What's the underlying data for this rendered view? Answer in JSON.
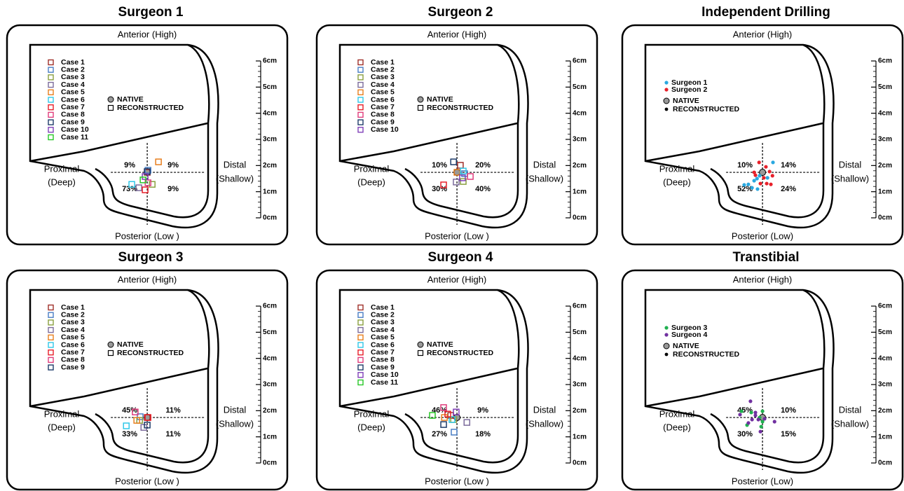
{
  "scale_ticks": [
    {
      "value": 0,
      "label": "0cm"
    },
    {
      "value": 1,
      "label": "1cm"
    },
    {
      "value": 2,
      "label": "2cm"
    },
    {
      "value": 3,
      "label": "3cm"
    },
    {
      "value": 4,
      "label": "4cm"
    },
    {
      "value": 5,
      "label": "5cm"
    },
    {
      "value": 6,
      "label": "6cm"
    }
  ],
  "panels": [
    {
      "title": "Surgeon 1",
      "anterior": "Anterior (High)",
      "posterior": "Posterior (Low )",
      "proximal": "Proximal",
      "proximal_sub": "(Deep)",
      "distal": "Distal",
      "distal_sub": "(Shallow)",
      "marker": "square",
      "series": [
        {
          "name": "Case 1",
          "color": "#a0302a",
          "x": [
            5.36
          ],
          "y": [
            1.74
          ]
        },
        {
          "name": "Case 2",
          "color": "#4a7ec4",
          "x": [
            5.39
          ],
          "y": [
            1.82
          ]
        },
        {
          "name": "Case 3",
          "color": "#8aa040",
          "x": [
            5.55
          ],
          "y": [
            1.28
          ]
        },
        {
          "name": "Case 4",
          "color": "#7c6c9c",
          "x": [
            5.04
          ],
          "y": [
            1.15
          ]
        },
        {
          "name": "Case 5",
          "color": "#e87f1f",
          "x": [
            5.79
          ],
          "y": [
            2.14
          ]
        },
        {
          "name": "Case 6",
          "color": "#30c8e8",
          "x": [
            4.77
          ],
          "y": [
            1.28
          ]
        },
        {
          "name": "Case 7",
          "color": "#e8202a",
          "x": [
            5.28
          ],
          "y": [
            1.07
          ]
        },
        {
          "name": "Case 8",
          "color": "#e03c7c",
          "x": [
            5.39
          ],
          "y": [
            1.34
          ]
        },
        {
          "name": "Case 9",
          "color": "#1e3c6a",
          "x": [
            5.36
          ],
          "y": [
            1.77
          ]
        },
        {
          "name": "Case 10",
          "color": "#8040b8",
          "x": [
            5.28
          ],
          "y": [
            1.58
          ]
        },
        {
          "name": "Case 11",
          "color": "#28c828",
          "x": [
            5.2
          ],
          "y": [
            1.45
          ]
        }
      ],
      "native": {
        "label": "NATIVE",
        "x": 5.36,
        "y": 1.74
      },
      "reconstructed_label": "RECONSTRUCTED",
      "quadrants": [
        "9%",
        "9%",
        "73%",
        "9%"
      ]
    },
    {
      "title": "Surgeon 2",
      "anterior": "Anterior (High)",
      "posterior": "Posterior (Low )",
      "proximal": "Proximal",
      "proximal_sub": "(Deep)",
      "distal": "Distal",
      "distal_sub": "(Shallow)",
      "marker": "square",
      "series": [
        {
          "name": "Case 1",
          "color": "#a0302a",
          "x": [
            5.49
          ],
          "y": [
            2.01
          ]
        },
        {
          "name": "Case 2",
          "color": "#4a7ec4",
          "x": [
            5.65
          ],
          "y": [
            1.69
          ]
        },
        {
          "name": "Case 3",
          "color": "#8aa040",
          "x": [
            5.6
          ],
          "y": [
            1.39
          ]
        },
        {
          "name": "Case 4",
          "color": "#7c6c9c",
          "x": [
            5.33
          ],
          "y": [
            1.37
          ]
        },
        {
          "name": "Case 5",
          "color": "#e87f1f",
          "x": [
            5.36
          ],
          "y": [
            1.74
          ]
        },
        {
          "name": "Case 6",
          "color": "#30c8e8",
          "x": [
            5.6
          ],
          "y": [
            1.79
          ]
        },
        {
          "name": "Case 7",
          "color": "#e8202a",
          "x": [
            4.85
          ],
          "y": [
            1.26
          ]
        },
        {
          "name": "Case 8",
          "color": "#e03c7c",
          "x": [
            5.87
          ],
          "y": [
            1.58
          ]
        },
        {
          "name": "Case 9",
          "color": "#1e3c6a",
          "x": [
            5.23
          ],
          "y": [
            2.14
          ]
        },
        {
          "name": "Case 10",
          "color": "#8040b8",
          "x": [
            5.57
          ],
          "y": [
            1.53
          ]
        }
      ],
      "native": {
        "label": "NATIVE",
        "x": 5.36,
        "y": 1.74
      },
      "reconstructed_label": "RECONSTRUCTED",
      "quadrants": [
        "10%",
        "20%",
        "30%",
        "40%"
      ]
    },
    {
      "title": "Independent Drilling",
      "anterior": "Anterior (High)",
      "posterior": "Posterior (Low)",
      "proximal": "Proximal",
      "proximal_sub": "(Deep)",
      "distal": "Distal",
      "distal_sub": "(Shallow)",
      "marker": "dot",
      "series": [
        {
          "name": "Surgeon 1",
          "color": "#29a8e0",
          "x": [
            5.04,
            5.15,
            5.25,
            4.82,
            4.96,
            5.17,
            5.76,
            5.55,
            4.66
          ],
          "y": [
            1.42,
            1.5,
            1.61,
            1.28,
            1.15,
            1.1,
            2.12,
            1.53,
            1.26
          ]
        },
        {
          "name": "Surgeon 2",
          "color": "#e8202a",
          "x": [
            5.23,
            5.49,
            5.63,
            5.74,
            5.41,
            5.52,
            5.28,
            5.04,
            5.68,
            5.09
          ],
          "y": [
            2.12,
            1.95,
            1.77,
            1.61,
            1.53,
            1.31,
            1.31,
            1.74,
            1.28,
            1.63
          ]
        }
      ],
      "native": {
        "label": "NATIVE",
        "x": 5.36,
        "y": 1.74
      },
      "reconstructed_label": "RECONSTRUCTED",
      "quadrants": [
        "10%",
        "14%",
        "52%",
        "24%"
      ]
    },
    {
      "title": "Surgeon 3",
      "anterior": "Anterior (High)",
      "posterior": "Posterior (Low )",
      "proximal": "Proximal",
      "proximal_sub": "(Deep)",
      "distal": "Distal",
      "distal_sub": "(Shallow)",
      "marker": "square",
      "series": [
        {
          "name": "Case 1",
          "color": "#a0302a",
          "x": [
            5.36
          ],
          "y": [
            1.74
          ]
        },
        {
          "name": "Case 2",
          "color": "#4a7ec4",
          "x": [
            5.09
          ],
          "y": [
            1.77
          ]
        },
        {
          "name": "Case 3",
          "color": "#8aa040",
          "x": [
            5.07
          ],
          "y": [
            1.63
          ]
        },
        {
          "name": "Case 4",
          "color": "#7c6c9c",
          "x": [
            5.23
          ],
          "y": [
            1.36
          ]
        },
        {
          "name": "Case 5",
          "color": "#e87f1f",
          "x": [
            4.96
          ],
          "y": [
            1.63
          ]
        },
        {
          "name": "Case 6",
          "color": "#30c8e8",
          "x": [
            4.56
          ],
          "y": [
            1.42
          ]
        },
        {
          "name": "Case 7",
          "color": "#e8202a",
          "x": [
            5.39
          ],
          "y": [
            1.74
          ]
        },
        {
          "name": "Case 8",
          "color": "#e03c7c",
          "x": [
            4.9
          ],
          "y": [
            1.95
          ]
        },
        {
          "name": "Case 9",
          "color": "#1e3c6a",
          "x": [
            5.36
          ],
          "y": [
            1.45
          ]
        }
      ],
      "native": {
        "label": "NATIVE",
        "x": 5.36,
        "y": 1.74
      },
      "reconstructed_label": "RECONSTRUCTED",
      "quadrants": [
        "45%",
        "11%",
        "33%",
        "11%"
      ]
    },
    {
      "title": "Surgeon 4",
      "anterior": "Anterior (High)",
      "posterior": "Posterior (Low )",
      "proximal": "Proximal",
      "proximal_sub": "(Deep)",
      "distal": "Distal",
      "distal_sub": "(Shallow)",
      "marker": "square",
      "series": [
        {
          "name": "Case 1",
          "color": "#a0302a",
          "x": [
            5.12
          ],
          "y": [
            1.82
          ]
        },
        {
          "name": "Case 2",
          "color": "#4a7ec4",
          "x": [
            5.25
          ],
          "y": [
            1.18
          ]
        },
        {
          "name": "Case 3",
          "color": "#8aa040",
          "x": [
            5.23
          ],
          "y": [
            1.66
          ]
        },
        {
          "name": "Case 4",
          "color": "#7c6c9c",
          "x": [
            5.74
          ],
          "y": [
            1.55
          ]
        },
        {
          "name": "Case 5",
          "color": "#e87f1f",
          "x": [
            4.88
          ],
          "y": [
            1.74
          ]
        },
        {
          "name": "Case 6",
          "color": "#30c8e8",
          "x": [
            5.17
          ],
          "y": [
            1.66
          ]
        },
        {
          "name": "Case 7",
          "color": "#e8202a",
          "x": [
            5.01
          ],
          "y": [
            1.87
          ]
        },
        {
          "name": "Case 8",
          "color": "#e03c7c",
          "x": [
            4.85
          ],
          "y": [
            2.12
          ]
        },
        {
          "name": "Case 9",
          "color": "#1e3c6a",
          "x": [
            4.85
          ],
          "y": [
            1.47
          ]
        },
        {
          "name": "Case 10",
          "color": "#8040b8",
          "x": [
            5.33
          ],
          "y": [
            1.95
          ]
        },
        {
          "name": "Case 11",
          "color": "#28c828",
          "x": [
            4.42
          ],
          "y": [
            1.82
          ]
        }
      ],
      "native": {
        "label": "NATIVE",
        "x": 5.36,
        "y": 1.74
      },
      "reconstructed_label": "RECONSTRUCTED",
      "quadrants": [
        "46%",
        "9%",
        "27%",
        "18%"
      ]
    },
    {
      "title": "Transtibial",
      "anterior": "Anterior (High)",
      "posterior": "Posterior (Low)",
      "proximal": "Proximal",
      "proximal_sub": "(Deep)",
      "distal": "Distal",
      "distal_sub": "(Shallow)",
      "marker": "dot",
      "series": [
        {
          "name": "Surgeon 3",
          "color": "#20b050",
          "x": [
            4.56,
            4.93,
            5.25,
            5.36,
            5.31,
            4.77,
            5.36
          ],
          "y": [
            1.98,
            1.93,
            1.74,
            1.58,
            1.39,
            1.45,
            1.98
          ]
        },
        {
          "name": "Surgeon 4",
          "color": "#7030a0",
          "x": [
            4.9,
            4.5,
            5.09,
            5.2,
            5.44,
            5.82,
            4.82,
            5.28,
            5.09,
            4.96
          ],
          "y": [
            2.36,
            1.85,
            1.82,
            1.66,
            1.69,
            1.58,
            1.53,
            1.2,
            1.93,
            1.66
          ]
        }
      ],
      "native": {
        "label": "NATIVE",
        "x": 5.36,
        "y": 1.74
      },
      "reconstructed_label": "RECONSTRUCTED",
      "quadrants": [
        "45%",
        "10%",
        "30%",
        "15%"
      ]
    }
  ]
}
